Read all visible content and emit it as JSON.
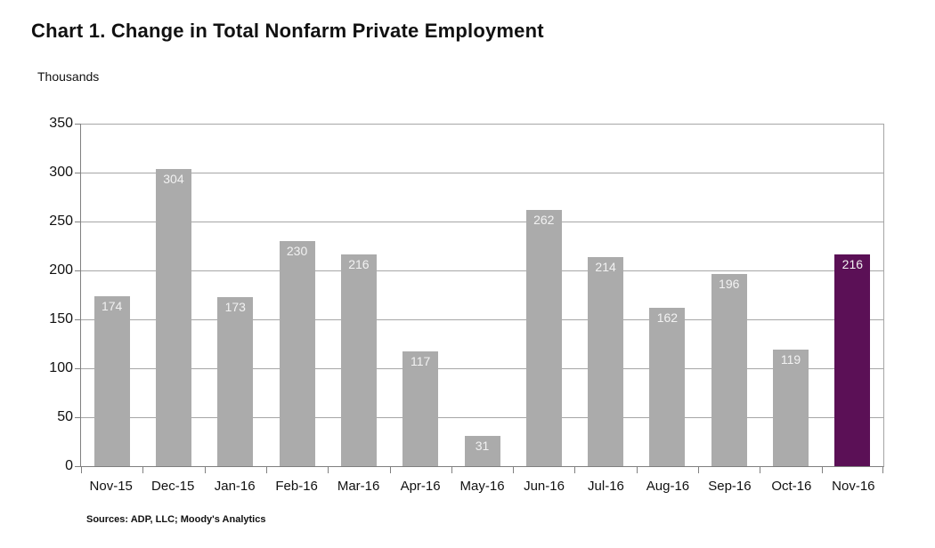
{
  "title": "Chart 1. Change in Total Nonfarm Private Employment",
  "y_axis_unit_label": "Thousands",
  "source_note": "Sources: ADP, LLC; Moody's Analytics",
  "colors": {
    "bar_default": "#ABABAB",
    "bar_highlight": "#5B1056",
    "gridline": "#A6A6A6",
    "axis": "#808080",
    "bar_value_label": "#F2F2F2"
  },
  "chart_data": {
    "type": "bar",
    "title": "Chart 1. Change in Total Nonfarm Private Employment",
    "categories": [
      "Nov-15",
      "Dec-15",
      "Jan-16",
      "Feb-16",
      "Mar-16",
      "Apr-16",
      "May-16",
      "Jun-16",
      "Jul-16",
      "Aug-16",
      "Sep-16",
      "Oct-16",
      "Nov-16"
    ],
    "values": [
      174,
      304,
      173,
      230,
      216,
      117,
      31,
      262,
      214,
      162,
      196,
      119,
      216
    ],
    "highlight_index": 12,
    "xlabel": "",
    "ylabel": "Thousands",
    "ylim": [
      0,
      350
    ],
    "yticks": [
      0,
      50,
      100,
      150,
      200,
      250,
      300,
      350
    ],
    "grid": true,
    "legend": "none",
    "data_labels": "inside-top"
  }
}
